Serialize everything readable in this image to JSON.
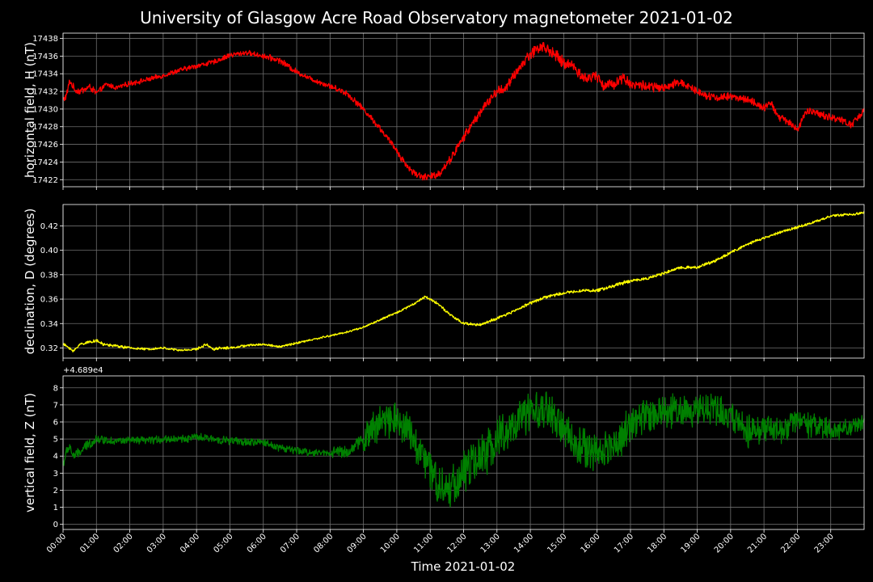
{
  "chart_data": {
    "type": "line",
    "title": "University of Glasgow Acre Road Observatory magnetometer 2021-01-02",
    "xlabel": "Time 2021-01-02",
    "x_tick_labels": [
      "00:00",
      "01:00",
      "02:00",
      "03:00",
      "04:00",
      "05:00",
      "06:00",
      "07:00",
      "08:00",
      "09:00",
      "10:00",
      "11:00",
      "12:00",
      "13:00",
      "14:00",
      "15:00",
      "16:00",
      "17:00",
      "18:00",
      "19:00",
      "20:00",
      "21:00",
      "22:00",
      "23:00"
    ],
    "xlim_hours": [
      0,
      24
    ],
    "grid": true,
    "background": "#000000",
    "panels": [
      {
        "id": "H",
        "ylabel": "horizontal field, H (nT)",
        "color": "#ff0000",
        "ylim": [
          17421.2,
          17438.6
        ],
        "yticks": [
          17422,
          17424,
          17426,
          17428,
          17430,
          17432,
          17434,
          17436,
          17438
        ],
        "offset_text": "",
        "noise": [
          0.35,
          0.25,
          0.25,
          0.25,
          0.25,
          0.25,
          0.3,
          0.25,
          0.3,
          0.3,
          0.35,
          0.4,
          0.45,
          0.5,
          0.6,
          0.55,
          0.55,
          0.5,
          0.45,
          0.4,
          0.4,
          0.4,
          0.4,
          0.35,
          0.35
        ],
        "x_hours": [
          0,
          0.1,
          0.2,
          0.35,
          0.5,
          0.8,
          1.0,
          1.3,
          1.6,
          2.0,
          2.5,
          3.0,
          3.5,
          4.0,
          4.5,
          5.0,
          5.5,
          6.0,
          6.5,
          7.0,
          7.5,
          8.0,
          8.5,
          9.0,
          9.5,
          10.0,
          10.25,
          10.5,
          10.8,
          11.0,
          11.3,
          11.6,
          12.0,
          12.5,
          13.0,
          13.3,
          13.6,
          14.0,
          14.3,
          14.6,
          15.0,
          15.3,
          15.6,
          16.0,
          16.2,
          16.5,
          16.8,
          17.0,
          17.5,
          18.0,
          18.5,
          19.0,
          19.5,
          20.0,
          20.5,
          21.0,
          21.2,
          21.5,
          21.8,
          22.0,
          22.3,
          22.6,
          23.0,
          23.3,
          23.6,
          23.9,
          24.0
        ],
        "y_values": [
          17431.0,
          17431.5,
          17433.2,
          17432.2,
          17432.0,
          17432.5,
          17431.8,
          17432.8,
          17432.4,
          17432.9,
          17433.3,
          17433.8,
          17434.4,
          17434.9,
          17435.3,
          17436.1,
          17436.4,
          17436.0,
          17435.5,
          17434.2,
          17433.3,
          17432.6,
          17431.8,
          17430.0,
          17427.8,
          17425.3,
          17423.8,
          17422.8,
          17422.3,
          17422.3,
          17422.8,
          17424.3,
          17426.8,
          17429.7,
          17432.0,
          17432.5,
          17434.3,
          17436.3,
          17437.1,
          17436.6,
          17435.2,
          17434.9,
          17433.4,
          17433.8,
          17432.6,
          17432.9,
          17433.6,
          17432.8,
          17432.6,
          17432.3,
          17433.1,
          17432.0,
          17431.3,
          17431.4,
          17431.1,
          17430.1,
          17430.6,
          17428.9,
          17428.5,
          17427.6,
          17429.9,
          17429.4,
          17429.1,
          17428.8,
          17428.2,
          17429.3,
          17430.2
        ]
      },
      {
        "id": "D",
        "ylabel": "declination, D (degrees)",
        "color": "#ffff00",
        "ylim": [
          0.3117,
          0.4375
        ],
        "yticks": [
          0.32,
          0.34,
          0.36,
          0.38,
          0.4,
          0.42
        ],
        "offset_text": "",
        "noise": [
          0.001,
          0.001,
          0.0008,
          0.0008,
          0.0009,
          0.0008,
          0.0008,
          0.0007,
          0.0007,
          0.0007,
          0.0008,
          0.0009,
          0.001,
          0.001,
          0.0012,
          0.001,
          0.0012,
          0.001,
          0.001,
          0.001,
          0.001,
          0.0009,
          0.0009,
          0.0009,
          0.0009
        ],
        "x_hours": [
          0,
          0.2,
          0.3,
          0.5,
          0.8,
          1.0,
          1.2,
          1.5,
          2.0,
          2.5,
          3.0,
          3.5,
          4.0,
          4.3,
          4.5,
          4.7,
          5.0,
          5.5,
          6.0,
          6.5,
          7.0,
          7.5,
          8.0,
          8.5,
          9.0,
          9.5,
          10.0,
          10.5,
          10.85,
          11.2,
          11.6,
          12.0,
          12.5,
          13.0,
          13.5,
          14.0,
          14.5,
          15.0,
          15.5,
          16.0,
          16.5,
          17.0,
          17.5,
          18.0,
          18.5,
          19.0,
          19.5,
          20.0,
          20.5,
          21.0,
          21.5,
          22.0,
          22.5,
          23.0,
          23.3,
          23.6,
          24.0
        ],
        "y_values": [
          0.323,
          0.32,
          0.317,
          0.323,
          0.325,
          0.326,
          0.323,
          0.322,
          0.32,
          0.319,
          0.32,
          0.318,
          0.319,
          0.323,
          0.319,
          0.32,
          0.32,
          0.322,
          0.323,
          0.321,
          0.324,
          0.327,
          0.33,
          0.333,
          0.337,
          0.343,
          0.349,
          0.356,
          0.362,
          0.357,
          0.347,
          0.34,
          0.339,
          0.344,
          0.35,
          0.357,
          0.362,
          0.365,
          0.367,
          0.367,
          0.371,
          0.375,
          0.377,
          0.381,
          0.386,
          0.386,
          0.391,
          0.398,
          0.405,
          0.41,
          0.415,
          0.419,
          0.423,
          0.428,
          0.429,
          0.429,
          0.431
        ]
      },
      {
        "id": "Z",
        "ylabel": "vertical field, Z (nT)",
        "color": "#008000",
        "ylim": [
          -0.3,
          8.7
        ],
        "yticks": [
          0,
          1,
          2,
          3,
          4,
          5,
          6,
          7,
          8
        ],
        "offset_text": "+4.689e4",
        "noise": [
          0.25,
          0.2,
          0.2,
          0.2,
          0.2,
          0.2,
          0.2,
          0.2,
          0.3,
          0.9,
          1.0,
          1.1,
          1.1,
          1.0,
          1.0,
          1.0,
          1.0,
          0.9,
          0.9,
          0.8,
          0.8,
          0.7,
          0.7,
          0.5,
          0.3
        ],
        "x_hours": [
          0,
          0.1,
          0.2,
          0.3,
          0.5,
          0.7,
          1.0,
          1.5,
          2.0,
          2.5,
          3.0,
          3.5,
          4.0,
          4.5,
          5.0,
          5.5,
          6.0,
          6.5,
          7.0,
          7.5,
          8.0,
          8.3,
          8.5,
          9.0,
          9.5,
          10.0,
          10.5,
          11.0,
          11.4,
          11.8,
          12.2,
          12.6,
          13.0,
          13.5,
          14.0,
          14.5,
          15.0,
          15.5,
          16.0,
          16.5,
          17.0,
          17.5,
          18.0,
          18.5,
          19.0,
          19.5,
          20.0,
          20.5,
          21.0,
          21.5,
          22.0,
          22.5,
          23.0,
          23.5,
          24.0
        ],
        "y_values": [
          3.5,
          4.2,
          4.6,
          4.0,
          4.2,
          4.6,
          5.0,
          4.9,
          4.9,
          4.9,
          5.0,
          5.0,
          5.1,
          5.0,
          4.9,
          4.8,
          4.8,
          4.5,
          4.3,
          4.2,
          4.2,
          4.3,
          4.2,
          5.0,
          6.0,
          6.3,
          5.0,
          3.2,
          2.0,
          2.5,
          3.5,
          4.0,
          5.0,
          5.8,
          6.5,
          6.7,
          5.5,
          4.5,
          4.2,
          4.6,
          5.8,
          6.4,
          6.7,
          6.6,
          6.8,
          6.8,
          6.3,
          5.5,
          5.6,
          5.5,
          6.0,
          5.7,
          5.5,
          5.6,
          6.0
        ]
      }
    ]
  }
}
